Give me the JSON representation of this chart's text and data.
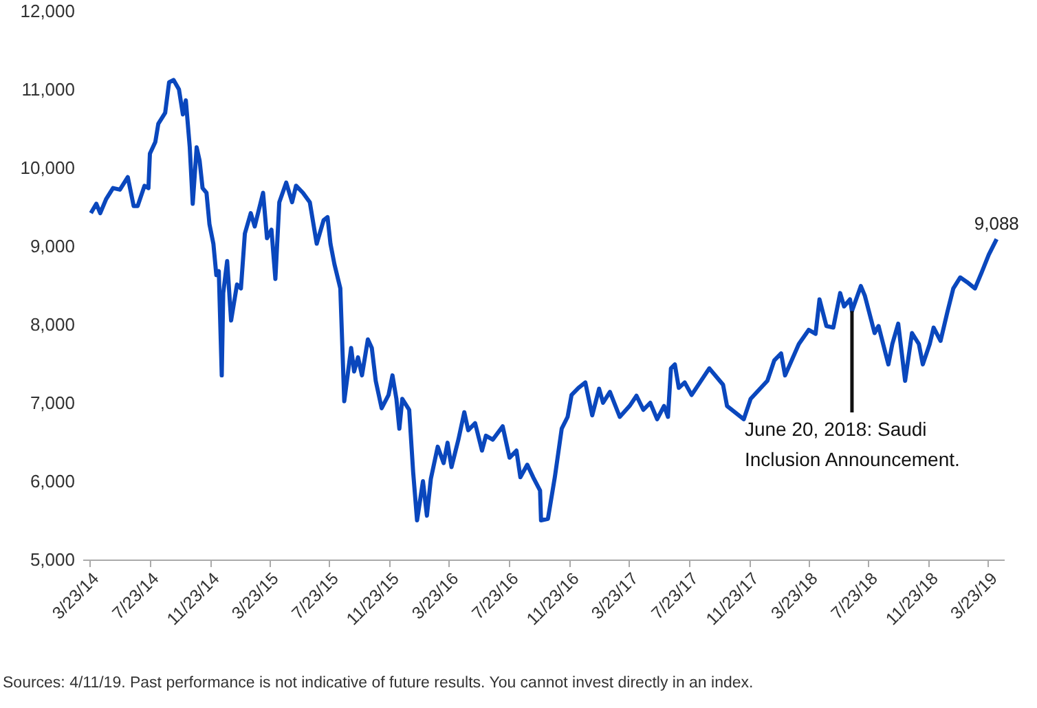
{
  "chart_data": {
    "type": "line",
    "xlim": [
      "2014-03-09",
      "2019-04-25"
    ],
    "ylim": [
      5000,
      12000
    ],
    "yticks": [
      {
        "value": 5000,
        "label": "5,000"
      },
      {
        "value": 6000,
        "label": "6,000"
      },
      {
        "value": 7000,
        "label": "7,000"
      },
      {
        "value": 8000,
        "label": "8,000"
      },
      {
        "value": 9000,
        "label": "9,000"
      },
      {
        "value": 10000,
        "label": "10,000"
      },
      {
        "value": 11000,
        "label": "11,000"
      },
      {
        "value": 12000,
        "label": "12,000"
      }
    ],
    "xticks": [
      {
        "value": "2014-03-23",
        "label": "3/23/14"
      },
      {
        "value": "2014-07-23",
        "label": "7/23/14"
      },
      {
        "value": "2014-11-23",
        "label": "11/23/14"
      },
      {
        "value": "2015-03-23",
        "label": "3/23/15"
      },
      {
        "value": "2015-07-23",
        "label": "7/23/15"
      },
      {
        "value": "2015-11-23",
        "label": "11/23/15"
      },
      {
        "value": "2016-03-23",
        "label": "3/23/16"
      },
      {
        "value": "2016-07-23",
        "label": "7/23/16"
      },
      {
        "value": "2016-11-23",
        "label": "11/23/16"
      },
      {
        "value": "2017-03-23",
        "label": "3/23/17"
      },
      {
        "value": "2017-07-23",
        "label": "7/23/17"
      },
      {
        "value": "2017-11-23",
        "label": "11/23/17"
      },
      {
        "value": "2018-03-23",
        "label": "3/23/18"
      },
      {
        "value": "2018-07-23",
        "label": "7/23/18"
      },
      {
        "value": "2018-11-23",
        "label": "11/23/18"
      },
      {
        "value": "2019-03-23",
        "label": "3/23/19"
      }
    ],
    "x": [
      "2014-03-26",
      "2014-04-06",
      "2014-04-14",
      "2014-04-26",
      "2014-05-10",
      "2014-05-24",
      "2014-06-09",
      "2014-06-21",
      "2014-06-29",
      "2014-07-13",
      "2014-07-21",
      "2014-07-24",
      "2014-08-04",
      "2014-08-10",
      "2014-08-24",
      "2014-09-01",
      "2014-09-10",
      "2014-09-21",
      "2014-09-29",
      "2014-10-05",
      "2014-10-13",
      "2014-10-19",
      "2014-10-27",
      "2014-11-02",
      "2014-11-08",
      "2014-11-16",
      "2014-11-22",
      "2014-11-30",
      "2014-12-06",
      "2014-12-11",
      "2014-12-17",
      "2014-12-20",
      "2014-12-28",
      "2015-01-05",
      "2015-01-17",
      "2015-01-25",
      "2015-02-02",
      "2015-02-14",
      "2015-02-22",
      "2015-03-11",
      "2015-03-19",
      "2015-03-28",
      "2015-04-05",
      "2015-04-13",
      "2015-04-27",
      "2015-05-09",
      "2015-05-17",
      "2015-05-31",
      "2015-06-14",
      "2015-06-28",
      "2015-07-12",
      "2015-07-20",
      "2015-07-26",
      "2015-08-03",
      "2015-08-15",
      "2015-08-23",
      "2015-09-06",
      "2015-09-12",
      "2015-09-20",
      "2015-09-28",
      "2015-10-10",
      "2015-10-18",
      "2015-10-26",
      "2015-11-07",
      "2015-11-21",
      "2015-11-29",
      "2015-12-07",
      "2015-12-13",
      "2015-12-19",
      "2016-01-02",
      "2016-01-10",
      "2016-01-18",
      "2016-01-30",
      "2016-02-07",
      "2016-02-15",
      "2016-02-29",
      "2016-03-12",
      "2016-03-20",
      "2016-03-28",
      "2016-04-11",
      "2016-04-23",
      "2016-05-01",
      "2016-05-15",
      "2016-05-29",
      "2016-06-06",
      "2016-06-20",
      "2016-07-10",
      "2016-07-24",
      "2016-08-07",
      "2016-08-15",
      "2016-08-29",
      "2016-09-10",
      "2016-09-24",
      "2016-09-26",
      "2016-10-10",
      "2016-10-24",
      "2016-11-07",
      "2016-11-19",
      "2016-11-27",
      "2016-12-11",
      "2016-12-25",
      "2017-01-08",
      "2017-01-22",
      "2017-01-30",
      "2017-02-13",
      "2017-03-05",
      "2017-03-25",
      "2017-04-08",
      "2017-04-22",
      "2017-05-06",
      "2017-05-20",
      "2017-06-03",
      "2017-06-11",
      "2017-06-17",
      "2017-06-25",
      "2017-07-03",
      "2017-07-15",
      "2017-07-29",
      "2017-09-03",
      "2017-10-01",
      "2017-10-09",
      "2017-11-12",
      "2017-11-26",
      "2017-12-30",
      "2018-01-13",
      "2018-01-27",
      "2018-02-04",
      "2018-03-04",
      "2018-03-24",
      "2018-04-07",
      "2018-04-15",
      "2018-04-29",
      "2018-05-13",
      "2018-05-27",
      "2018-06-04",
      "2018-06-16",
      "2018-06-20",
      "2018-07-08",
      "2018-07-16",
      "2018-08-05",
      "2018-08-13",
      "2018-09-02",
      "2018-09-10",
      "2018-09-22",
      "2018-10-06",
      "2018-10-20",
      "2018-11-03",
      "2018-11-11",
      "2018-11-25",
      "2018-12-03",
      "2018-12-17",
      "2018-12-31",
      "2019-01-12",
      "2019-01-26",
      "2019-02-09",
      "2019-02-25",
      "2019-03-11",
      "2019-03-25",
      "2019-04-10"
    ],
    "series": [
      {
        "color": "#0a47bd",
        "values": [
          9420,
          9540,
          9420,
          9600,
          9740,
          9720,
          9880,
          9510,
          9510,
          9770,
          9740,
          10180,
          10330,
          10560,
          10700,
          11090,
          11120,
          11000,
          10680,
          10860,
          10260,
          9540,
          10260,
          10090,
          9740,
          9680,
          9280,
          9030,
          8630,
          8680,
          7350,
          8400,
          8810,
          8050,
          8510,
          8460,
          9160,
          9420,
          9250,
          9680,
          9100,
          9210,
          8580,
          9560,
          9810,
          9560,
          9770,
          9680,
          9560,
          9030,
          9330,
          9370,
          9030,
          8770,
          8460,
          7020,
          7700,
          7400,
          7580,
          7350,
          7810,
          7700,
          7280,
          6930,
          7100,
          7350,
          7050,
          6670,
          7050,
          6910,
          6120,
          5500,
          6000,
          5560,
          6030,
          6440,
          6230,
          6490,
          6180,
          6530,
          6880,
          6650,
          6740,
          6390,
          6580,
          6530,
          6700,
          6300,
          6390,
          6050,
          6210,
          6050,
          5880,
          5500,
          5520,
          6050,
          6670,
          6820,
          7100,
          7190,
          7260,
          6840,
          7180,
          7000,
          7140,
          6820,
          6960,
          7090,
          6910,
          7000,
          6790,
          6960,
          6820,
          7440,
          7490,
          7190,
          7260,
          7100,
          7440,
          7230,
          6960,
          6790,
          7050,
          7280,
          7540,
          7630,
          7350,
          7750,
          7930,
          7880,
          8320,
          7980,
          7960,
          8400,
          8230,
          8320,
          8170,
          8490,
          8370,
          7890,
          7980,
          7490,
          7750,
          8010,
          7280,
          7890,
          7750,
          7490,
          7750,
          7960,
          7790,
          8160,
          8460,
          8600,
          8540,
          8460,
          8670,
          8890,
          9088
        ]
      }
    ],
    "annotations": [
      {
        "text": "9,088",
        "x": "2019-04-10",
        "y": 9088
      },
      {
        "text": "June 20, 2018:  Saudi Inclusion Announcement.",
        "x": "2018-06-20",
        "y": 8170
      },
      "Sources: 4/11/19. Past performance is not indicative of future results. You cannot invest directly in an index."
    ]
  }
}
